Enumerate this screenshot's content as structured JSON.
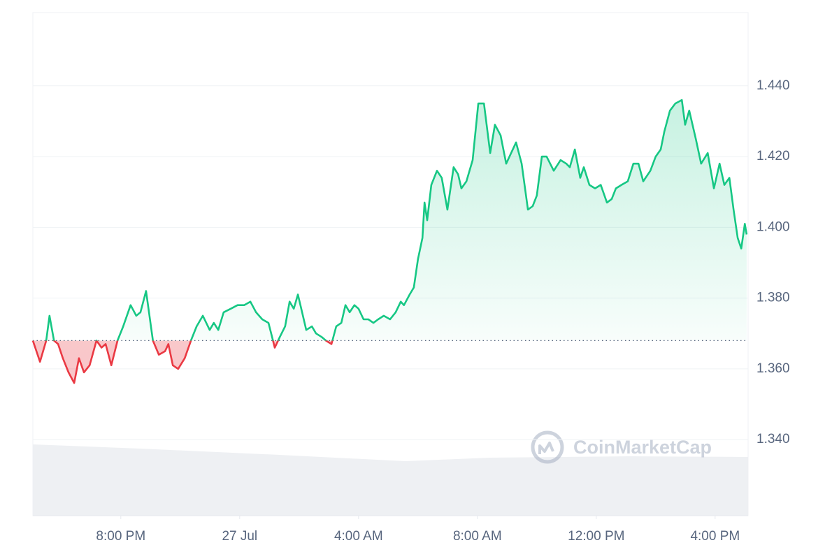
{
  "chart_data": {
    "type": "line",
    "watermark": "CoinMarketCap",
    "colors": {
      "up": "#16c784",
      "down": "#ea3943"
    },
    "baseline": 1.368,
    "xlim": [
      -6.96,
      17.11
    ],
    "xticks": [
      {
        "value": -4,
        "label": "8:00 PM"
      },
      {
        "value": 0,
        "label": "27 Jul"
      },
      {
        "value": 4,
        "label": "4:00 AM"
      },
      {
        "value": 8,
        "label": "8:00 AM"
      },
      {
        "value": 12,
        "label": "12:00 PM"
      },
      {
        "value": 16,
        "label": "4:00 PM"
      }
    ],
    "ylim": [
      1.3185,
      1.4607
    ],
    "yticks": [
      {
        "value": 1.34,
        "label": "1.340"
      },
      {
        "value": 1.36,
        "label": "1.360"
      },
      {
        "value": 1.38,
        "label": "1.380"
      },
      {
        "value": 1.4,
        "label": "1.400"
      },
      {
        "value": 1.42,
        "label": "1.420"
      },
      {
        "value": 1.44,
        "label": "1.440"
      }
    ],
    "grid": true,
    "x": [
      -6.96,
      -6.72,
      -6.51,
      -6.4,
      -6.25,
      -6.11,
      -5.95,
      -5.76,
      -5.57,
      -5.41,
      -5.24,
      -5.05,
      -4.82,
      -4.65,
      -4.51,
      -4.32,
      -4.11,
      -3.92,
      -3.67,
      -3.48,
      -3.34,
      -3.15,
      -2.92,
      -2.72,
      -2.51,
      -2.4,
      -2.25,
      -2.07,
      -1.85,
      -1.64,
      -1.45,
      -1.24,
      -1.01,
      -0.87,
      -0.72,
      -0.54,
      -0.3,
      -0.07,
      0.15,
      0.36,
      0.55,
      0.76,
      0.97,
      1.18,
      1.35,
      1.53,
      1.68,
      1.82,
      1.96,
      2.1,
      2.24,
      2.43,
      2.57,
      2.76,
      2.9,
      3.09,
      3.25,
      3.42,
      3.56,
      3.7,
      3.86,
      4.0,
      4.17,
      4.33,
      4.5,
      4.66,
      4.85,
      5.06,
      5.25,
      5.42,
      5.53,
      5.72,
      5.86,
      6.0,
      6.15,
      6.22,
      6.31,
      6.45,
      6.64,
      6.8,
      6.99,
      7.2,
      7.35,
      7.46,
      7.63,
      7.84,
      8.03,
      8.22,
      8.43,
      8.59,
      8.78,
      8.97,
      9.3,
      9.49,
      9.7,
      9.86,
      10.0,
      10.17,
      10.33,
      10.57,
      10.8,
      10.99,
      11.11,
      11.28,
      11.46,
      11.58,
      11.77,
      11.96,
      12.15,
      12.36,
      12.52,
      12.66,
      12.85,
      13.06,
      13.25,
      13.42,
      13.58,
      13.82,
      14.0,
      14.17,
      14.29,
      14.48,
      14.66,
      14.88,
      14.99,
      15.13,
      15.35,
      15.53,
      15.75,
      15.96,
      16.15,
      16.31,
      16.48,
      16.62,
      16.76,
      16.88,
      17.0,
      17.06
    ],
    "values": [
      1.368,
      1.362,
      1.368,
      1.375,
      1.368,
      1.367,
      1.363,
      1.359,
      1.356,
      1.363,
      1.359,
      1.361,
      1.368,
      1.366,
      1.367,
      1.361,
      1.368,
      1.372,
      1.378,
      1.375,
      1.376,
      1.382,
      1.368,
      1.364,
      1.365,
      1.367,
      1.361,
      1.36,
      1.363,
      1.368,
      1.372,
      1.375,
      1.371,
      1.373,
      1.371,
      1.376,
      1.377,
      1.378,
      1.378,
      1.379,
      1.376,
      1.374,
      1.373,
      1.366,
      1.369,
      1.372,
      1.379,
      1.377,
      1.381,
      1.376,
      1.371,
      1.372,
      1.37,
      1.369,
      1.368,
      1.367,
      1.372,
      1.373,
      1.378,
      1.376,
      1.378,
      1.377,
      1.374,
      1.374,
      1.373,
      1.374,
      1.375,
      1.374,
      1.376,
      1.379,
      1.378,
      1.381,
      1.383,
      1.391,
      1.397,
      1.407,
      1.402,
      1.412,
      1.416,
      1.414,
      1.405,
      1.417,
      1.415,
      1.411,
      1.413,
      1.419,
      1.435,
      1.435,
      1.421,
      1.429,
      1.426,
      1.418,
      1.424,
      1.418,
      1.405,
      1.406,
      1.409,
      1.42,
      1.42,
      1.416,
      1.419,
      1.418,
      1.417,
      1.422,
      1.414,
      1.417,
      1.412,
      1.411,
      1.412,
      1.407,
      1.408,
      1.411,
      1.412,
      1.413,
      1.418,
      1.418,
      1.413,
      1.416,
      1.42,
      1.422,
      1.427,
      1.433,
      1.435,
      1.436,
      1.429,
      1.433,
      1.425,
      1.418,
      1.421,
      1.411,
      1.418,
      1.412,
      1.414,
      1.405,
      1.397,
      1.394,
      1.401,
      1.398
    ]
  }
}
